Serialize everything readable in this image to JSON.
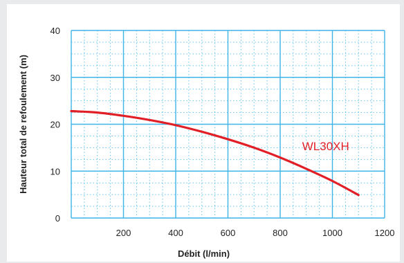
{
  "chart_data": {
    "type": "line",
    "xlabel": "Débit (l/min)",
    "ylabel": "Hauteur total de refoulement (m)",
    "xlim": [
      0,
      1200
    ],
    "ylim": [
      0,
      40
    ],
    "x_ticks": [
      "200",
      "400",
      "600",
      "800",
      "1000",
      "1200"
    ],
    "y_ticks": [
      "0",
      "10",
      "20",
      "30",
      "40"
    ],
    "grid": true,
    "minor_grid": true,
    "legend": "none",
    "series": [
      {
        "name": "WL30XH",
        "color": "#e11f26",
        "x": [
          0,
          100,
          200,
          300,
          400,
          500,
          600,
          700,
          800,
          900,
          1000,
          1100
        ],
        "y": [
          22.8,
          22.5,
          21.8,
          20.9,
          19.8,
          18.4,
          16.8,
          15.0,
          12.9,
          10.5,
          7.9,
          4.9
        ]
      }
    ]
  }
}
